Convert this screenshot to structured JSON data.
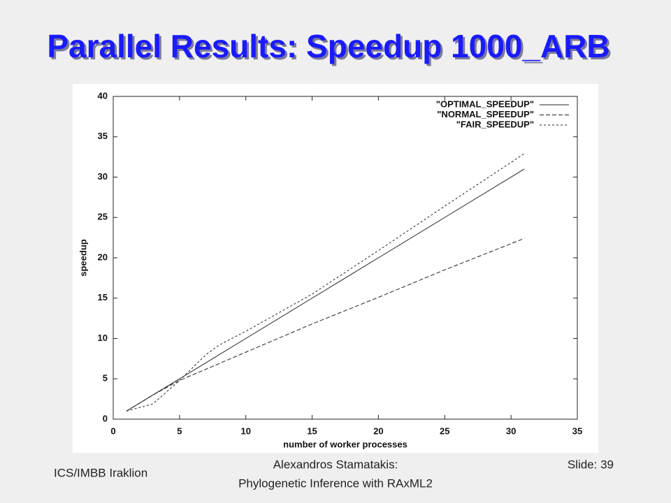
{
  "slide": {
    "title": "Parallel Results: Speedup 1000_ARB",
    "footer_left": "ICS/IMBB Iraklion",
    "footer_center": [
      "Alexandros Stamatakis:",
      "Phylogenetic Inference with RAxML2"
    ],
    "slide_number": "Slide: 39"
  },
  "chart_data": {
    "type": "line",
    "x_label": "number of worker processes",
    "y_label": "speedup",
    "x": [
      1,
      3,
      5,
      7,
      8,
      10,
      15,
      20,
      25,
      31
    ],
    "series": [
      {
        "name": "\"OPTIMAL_SPEEDUP\"",
        "color": "#222222",
        "dash": "solid",
        "values": [
          1,
          3,
          5,
          7,
          8,
          10,
          15,
          20,
          25,
          31
        ]
      },
      {
        "name": "\"NORMAL_SPEEDUP\"",
        "color": "#222222",
        "dash": "dashed",
        "values": [
          1,
          3,
          4.8,
          6.2,
          6.9,
          8.3,
          11.8,
          15.1,
          18.5,
          22.4
        ]
      },
      {
        "name": "\"FAIR_SPEEDUP\"",
        "color": "#222222",
        "dash": "dotted",
        "values": [
          1,
          1.9,
          4.8,
          8,
          9.2,
          10.9,
          15.5,
          20.9,
          26.4,
          32.9
        ]
      }
    ],
    "xlim": [
      0,
      35
    ],
    "xticks": [
      0,
      5,
      10,
      15,
      20,
      25,
      30,
      35
    ],
    "ylim": [
      0,
      40
    ],
    "yticks": [
      0,
      5,
      10,
      15,
      20,
      25,
      30,
      35,
      40
    ],
    "grid": false,
    "legend": "top-right"
  }
}
